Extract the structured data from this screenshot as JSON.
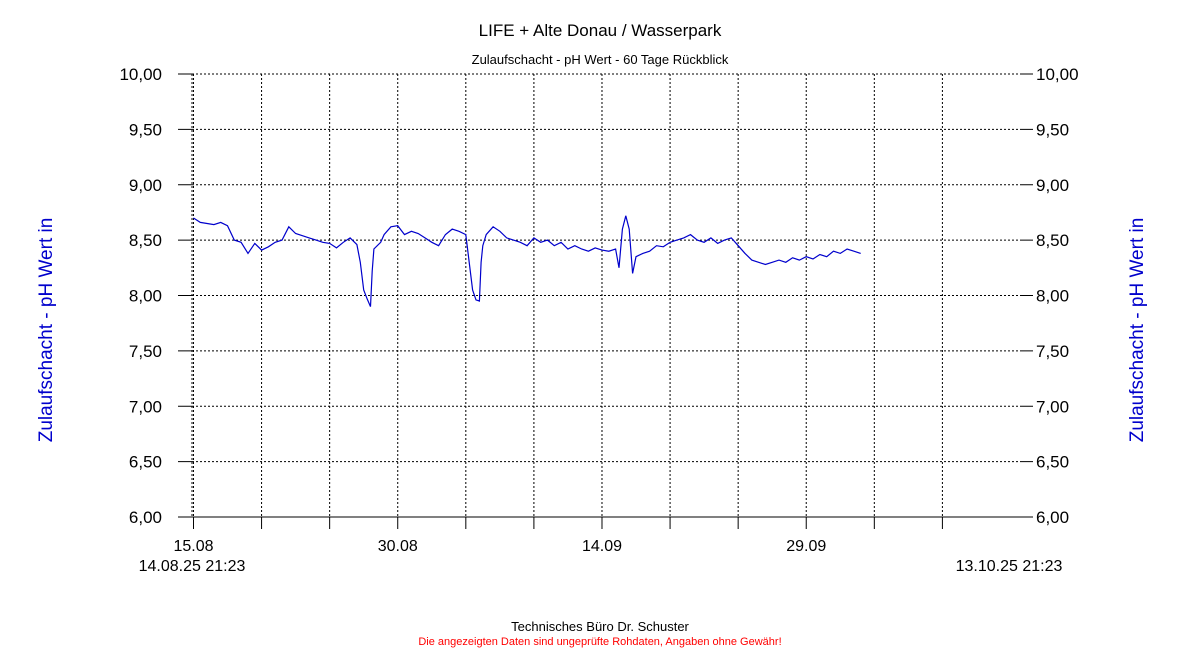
{
  "chart_data": {
    "type": "line",
    "title": "LIFE + Alte Donau / Wasserpark",
    "subtitle": "Zulaufschacht - pH Wert - 60 Tage Rückblick",
    "ylabel_left": "Zulaufschacht - pH Wert in",
    "ylabel_right": "Zulaufschacht - pH Wert in",
    "ylim": [
      6.0,
      10.0
    ],
    "yticks": [
      "10,00",
      "9,50",
      "9,00",
      "8,50",
      "8,00",
      "7,50",
      "7,00",
      "6,50",
      "6,00"
    ],
    "xlim": [
      "2025-08-14 21:23",
      "2025-10-13 21:23"
    ],
    "grid": true,
    "xtick_labels": [
      {
        "date": "2025-08-15",
        "label": "15.08"
      },
      {
        "date": "2025-08-30",
        "label": "30.08"
      },
      {
        "date": "2025-09-14",
        "label": "14.09"
      },
      {
        "date": "2025-09-29",
        "label": "29.09"
      }
    ],
    "range_start_label": "14.08.25 21:23",
    "range_end_label": "13.10.25 21:23",
    "series": [
      {
        "color": "#0000cc",
        "points": [
          [
            "2025-08-15 00:00",
            8.7
          ],
          [
            "2025-08-15 12:00",
            8.66
          ],
          [
            "2025-08-16 00:00",
            8.65
          ],
          [
            "2025-08-16 12:00",
            8.64
          ],
          [
            "2025-08-17 00:00",
            8.66
          ],
          [
            "2025-08-17 12:00",
            8.63
          ],
          [
            "2025-08-18 00:00",
            8.5
          ],
          [
            "2025-08-18 12:00",
            8.48
          ],
          [
            "2025-08-19 00:00",
            8.38
          ],
          [
            "2025-08-19 12:00",
            8.47
          ],
          [
            "2025-08-20 00:00",
            8.41
          ],
          [
            "2025-08-20 12:00",
            8.44
          ],
          [
            "2025-08-21 00:00",
            8.48
          ],
          [
            "2025-08-21 12:00",
            8.5
          ],
          [
            "2025-08-22 00:00",
            8.62
          ],
          [
            "2025-08-22 12:00",
            8.56
          ],
          [
            "2025-08-23 00:00",
            8.54
          ],
          [
            "2025-08-23 12:00",
            8.52
          ],
          [
            "2025-08-24 00:00",
            8.5
          ],
          [
            "2025-08-24 12:00",
            8.48
          ],
          [
            "2025-08-25 00:00",
            8.47
          ],
          [
            "2025-08-25 12:00",
            8.43
          ],
          [
            "2025-08-26 00:00",
            8.48
          ],
          [
            "2025-08-26 12:00",
            8.52
          ],
          [
            "2025-08-27 00:00",
            8.46
          ],
          [
            "2025-08-27 06:00",
            8.3
          ],
          [
            "2025-08-27 12:00",
            8.05
          ],
          [
            "2025-08-27 18:00",
            7.97
          ],
          [
            "2025-08-28 00:00",
            7.9
          ],
          [
            "2025-08-28 03:00",
            8.22
          ],
          [
            "2025-08-28 06:00",
            8.42
          ],
          [
            "2025-08-28 18:00",
            8.48
          ],
          [
            "2025-08-29 00:00",
            8.55
          ],
          [
            "2025-08-29 12:00",
            8.62
          ],
          [
            "2025-08-30 00:00",
            8.63
          ],
          [
            "2025-08-30 12:00",
            8.55
          ],
          [
            "2025-08-31 00:00",
            8.58
          ],
          [
            "2025-08-31 12:00",
            8.56
          ],
          [
            "2025-09-01 00:00",
            8.52
          ],
          [
            "2025-09-01 12:00",
            8.48
          ],
          [
            "2025-09-02 00:00",
            8.45
          ],
          [
            "2025-09-02 12:00",
            8.55
          ],
          [
            "2025-09-03 00:00",
            8.6
          ],
          [
            "2025-09-03 12:00",
            8.58
          ],
          [
            "2025-09-04 00:00",
            8.55
          ],
          [
            "2025-09-04 06:00",
            8.3
          ],
          [
            "2025-09-04 12:00",
            8.05
          ],
          [
            "2025-09-04 18:00",
            7.96
          ],
          [
            "2025-09-05 00:00",
            7.95
          ],
          [
            "2025-09-05 03:00",
            8.3
          ],
          [
            "2025-09-05 06:00",
            8.45
          ],
          [
            "2025-09-05 12:00",
            8.55
          ],
          [
            "2025-09-06 00:00",
            8.62
          ],
          [
            "2025-09-06 12:00",
            8.58
          ],
          [
            "2025-09-07 00:00",
            8.52
          ],
          [
            "2025-09-07 12:00",
            8.5
          ],
          [
            "2025-09-08 00:00",
            8.48
          ],
          [
            "2025-09-08 12:00",
            8.45
          ],
          [
            "2025-09-09 00:00",
            8.52
          ],
          [
            "2025-09-09 12:00",
            8.48
          ],
          [
            "2025-09-10 00:00",
            8.5
          ],
          [
            "2025-09-10 12:00",
            8.45
          ],
          [
            "2025-09-11 00:00",
            8.48
          ],
          [
            "2025-09-11 12:00",
            8.42
          ],
          [
            "2025-09-12 00:00",
            8.45
          ],
          [
            "2025-09-12 12:00",
            8.42
          ],
          [
            "2025-09-13 00:00",
            8.4
          ],
          [
            "2025-09-13 12:00",
            8.43
          ],
          [
            "2025-09-14 00:00",
            8.41
          ],
          [
            "2025-09-14 12:00",
            8.4
          ],
          [
            "2025-09-15 00:00",
            8.42
          ],
          [
            "2025-09-15 06:00",
            8.25
          ],
          [
            "2025-09-15 12:00",
            8.6
          ],
          [
            "2025-09-15 18:00",
            8.72
          ],
          [
            "2025-09-16 00:00",
            8.6
          ],
          [
            "2025-09-16 06:00",
            8.2
          ],
          [
            "2025-09-16 12:00",
            8.35
          ],
          [
            "2025-09-17 00:00",
            8.38
          ],
          [
            "2025-09-17 12:00",
            8.4
          ],
          [
            "2025-09-18 00:00",
            8.45
          ],
          [
            "2025-09-18 12:00",
            8.44
          ],
          [
            "2025-09-19 00:00",
            8.48
          ],
          [
            "2025-09-19 12:00",
            8.5
          ],
          [
            "2025-09-20 00:00",
            8.52
          ],
          [
            "2025-09-20 12:00",
            8.55
          ],
          [
            "2025-09-21 00:00",
            8.5
          ],
          [
            "2025-09-21 12:00",
            8.48
          ],
          [
            "2025-09-22 00:00",
            8.52
          ],
          [
            "2025-09-22 12:00",
            8.47
          ],
          [
            "2025-09-23 00:00",
            8.5
          ],
          [
            "2025-09-23 12:00",
            8.52
          ],
          [
            "2025-09-24 00:00",
            8.45
          ],
          [
            "2025-09-24 12:00",
            8.38
          ],
          [
            "2025-09-25 00:00",
            8.32
          ],
          [
            "2025-09-25 12:00",
            8.3
          ],
          [
            "2025-09-26 00:00",
            8.28
          ],
          [
            "2025-09-26 12:00",
            8.3
          ],
          [
            "2025-09-27 00:00",
            8.32
          ],
          [
            "2025-09-27 12:00",
            8.3
          ],
          [
            "2025-09-28 00:00",
            8.34
          ],
          [
            "2025-09-28 12:00",
            8.32
          ],
          [
            "2025-09-29 00:00",
            8.35
          ],
          [
            "2025-09-29 12:00",
            8.33
          ],
          [
            "2025-09-30 00:00",
            8.37
          ],
          [
            "2025-09-30 12:00",
            8.35
          ],
          [
            "2025-10-01 00:00",
            8.4
          ],
          [
            "2025-10-01 12:00",
            8.38
          ],
          [
            "2025-10-02 00:00",
            8.42
          ],
          [
            "2025-10-02 12:00",
            8.4
          ],
          [
            "2025-10-03 00:00",
            8.38
          ]
        ]
      }
    ]
  },
  "footer": {
    "credit": "Technisches Büro Dr. Schuster",
    "disclaimer": "Die angezeigten Daten sind ungeprüfte Rohdaten, Angaben ohne Gewähr!"
  }
}
